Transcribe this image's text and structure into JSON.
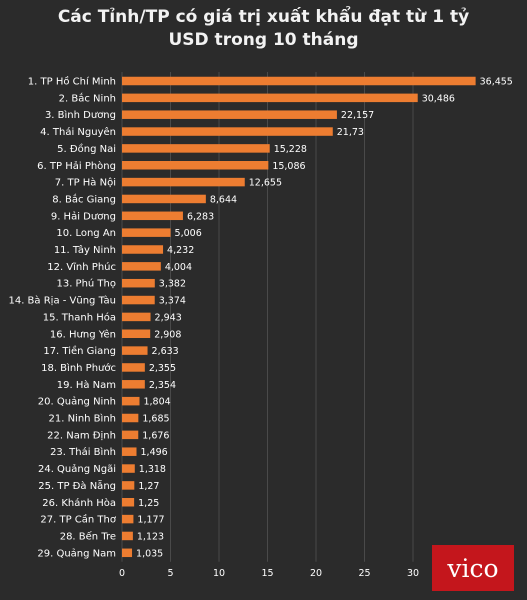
{
  "chart_data": {
    "type": "bar",
    "orientation": "horizontal",
    "title_lines": [
      "Các Tỉnh/TP có giá trị xuất khẩu đạt từ 1 tỷ",
      "USD trong 10 tháng"
    ],
    "categories": [
      "1. TP Hồ Chí Minh",
      "2. Bắc Ninh",
      "3. Bình Dương",
      "4. Thái Nguyên",
      "5. Đồng Nai",
      "6. TP Hải Phòng",
      "7. TP Hà Nội",
      "8. Bắc Giang",
      "9. Hải Dương",
      "10. Long An",
      "11. Tây Ninh",
      "12. Vĩnh Phúc",
      "13. Phú Thọ",
      "14. Bà Rịa - Vũng Tàu",
      "15. Thanh Hóa",
      "16. Hưng Yên",
      "17. Tiền Giang",
      "18. Bình Phước",
      "19. Hà Nam",
      "20. Quảng Ninh",
      "21. Ninh Bình",
      "22. Nam Định",
      "23. Thái Bình",
      "24. Quảng Ngãi",
      "25. TP Đà Nẵng",
      "26. Khánh Hòa",
      "27. TP Cần Thơ",
      "28. Bến Tre",
      "29. Quảng Nam"
    ],
    "values": [
      36.455,
      30.486,
      22.157,
      21.73,
      15.228,
      15.086,
      12.655,
      8.644,
      6.283,
      5.006,
      4.232,
      4.004,
      3.382,
      3.374,
      2.943,
      2.908,
      2.633,
      2.355,
      2.354,
      1.804,
      1.685,
      1.676,
      1.496,
      1.318,
      1.27,
      1.25,
      1.177,
      1.123,
      1.035
    ],
    "value_labels": [
      "36,455",
      "30,486",
      "22,157",
      "21,73",
      "15,228",
      "15,086",
      "12,655",
      "8,644",
      "6,283",
      "5,006",
      "4,232",
      "4,004",
      "3,382",
      "3,374",
      "2,943",
      "2,908",
      "2,633",
      "2,355",
      "2,354",
      "1,804",
      "1,685",
      "1,676",
      "1,496",
      "1,318",
      "1,27",
      "1,25",
      "1,177",
      "1,123",
      "1,035"
    ],
    "xticks": [
      0,
      5,
      10,
      15,
      20,
      25,
      30
    ],
    "xlim": [
      0,
      40
    ],
    "grid": true,
    "bar_color": "#ed7d31"
  },
  "logo": {
    "text": "vico"
  },
  "colors": {
    "background": "#2b2b2b",
    "text": "#ffffff",
    "grid": "#4a4a4a",
    "logo_bg": "#c4161c"
  }
}
